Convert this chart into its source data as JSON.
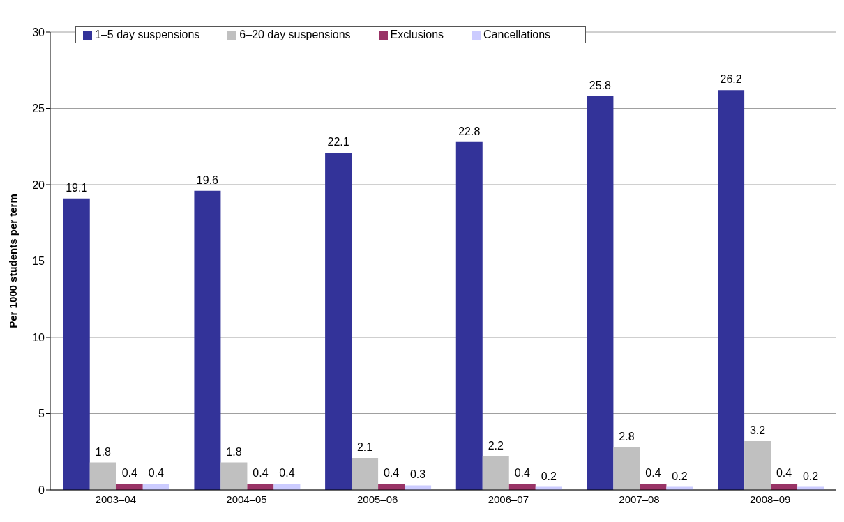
{
  "chart_data": {
    "type": "bar",
    "ylabel": "Per 1000 students per term",
    "categories": [
      "2003–04",
      "2004–05",
      "2005–06",
      "2006–07",
      "2007–08",
      "2008–09"
    ],
    "series": [
      {
        "name": "1–5 day suspensions",
        "color": "#333399",
        "values": [
          19.1,
          19.6,
          22.1,
          22.8,
          25.8,
          26.2
        ]
      },
      {
        "name": "6–20 day suspensions",
        "color": "#c0c0c0",
        "values": [
          1.8,
          1.8,
          2.1,
          2.2,
          2.8,
          3.2
        ]
      },
      {
        "name": "Exclusions",
        "color": "#993366",
        "values": [
          0.4,
          0.4,
          0.4,
          0.4,
          0.4,
          0.4
        ]
      },
      {
        "name": "Cancellations",
        "color": "#ccccff",
        "values": [
          0.4,
          0.4,
          0.3,
          0.2,
          0.2,
          0.2
        ]
      }
    ],
    "ylim": [
      0,
      30
    ],
    "yticks": [
      0,
      5,
      10,
      15,
      20,
      25,
      30
    ],
    "grid": "y",
    "legend": "top left",
    "data_labels": true
  }
}
